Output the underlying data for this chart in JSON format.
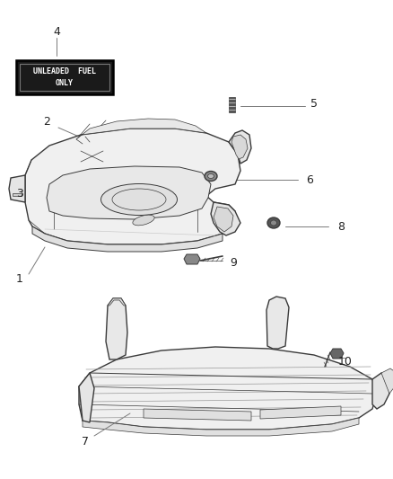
{
  "bg_color": "#ffffff",
  "fig_width": 4.39,
  "fig_height": 5.33,
  "dpi": 100,
  "outline_color": "#3a3a3a",
  "line_color": "#7a7a7a",
  "text_color": "#222222",
  "lw_main": 1.0,
  "lw_thin": 0.5,
  "lw_leader": 0.7
}
